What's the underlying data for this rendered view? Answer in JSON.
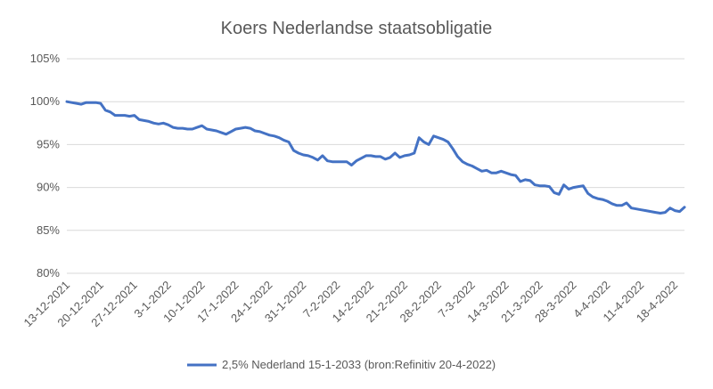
{
  "chart_data": {
    "type": "line",
    "title": "Koers Nederlandse staatsobligatie",
    "xlabel": "",
    "ylabel": "",
    "ylim": [
      80,
      105
    ],
    "y_ticks": [
      "80%",
      "85%",
      "90%",
      "95%",
      "100%",
      "105%"
    ],
    "y_tick_values": [
      80,
      85,
      90,
      95,
      100,
      105
    ],
    "x_tick_labels": [
      "13-12-2021",
      "20-12-2021",
      "27-12-2021",
      "3-1-2022",
      "10-1-2022",
      "17-1-2022",
      "24-1-2022",
      "31-1-2022",
      "7-2-2022",
      "14-2-2022",
      "21-2-2022",
      "28-2-2022",
      "7-3-2022",
      "14-3-2022",
      "21-3-2022",
      "28-3-2022",
      "4-4-2022",
      "11-4-2022",
      "18-4-2022"
    ],
    "xlim": [
      0,
      128
    ],
    "grid": true,
    "legend_position": "bottom",
    "color": "#4472c4",
    "series": [
      {
        "name": "2,5% Nederland 15-1-2033 (bron:Refinitiv 20-4-2022)",
        "x": [
          0,
          1,
          2,
          3,
          4,
          5,
          6,
          7,
          8,
          9,
          10,
          11,
          12,
          13,
          14,
          15,
          16,
          17,
          18,
          19,
          20,
          21,
          22,
          23,
          24,
          25,
          26,
          27,
          28,
          29,
          30,
          31,
          32,
          33,
          34,
          35,
          36,
          37,
          38,
          39,
          40,
          41,
          42,
          43,
          44,
          45,
          46,
          47,
          48,
          49,
          50,
          51,
          52,
          53,
          54,
          55,
          56,
          57,
          58,
          59,
          60,
          61,
          62,
          63,
          64,
          65,
          66,
          67,
          68,
          69,
          70,
          71,
          72,
          73,
          74,
          75,
          76,
          77,
          78,
          79,
          80,
          81,
          82,
          83,
          84,
          85,
          86,
          87,
          88,
          89,
          90,
          91,
          92,
          93,
          94,
          95,
          96,
          97,
          98,
          99,
          100,
          101,
          102,
          103,
          104,
          105,
          106,
          107,
          108,
          109,
          110,
          111,
          112,
          113,
          114,
          115,
          116,
          117,
          118,
          119,
          120,
          121,
          122,
          123,
          124,
          125,
          126,
          127,
          128
        ],
        "values": [
          100.0,
          99.9,
          99.8,
          99.7,
          99.9,
          99.9,
          99.9,
          99.8,
          99.0,
          98.8,
          98.4,
          98.4,
          98.4,
          98.3,
          98.4,
          97.9,
          97.8,
          97.7,
          97.5,
          97.4,
          97.5,
          97.3,
          97.0,
          96.9,
          96.9,
          96.8,
          96.8,
          97.0,
          97.2,
          96.8,
          96.7,
          96.6,
          96.4,
          96.2,
          96.5,
          96.8,
          96.9,
          97.0,
          96.9,
          96.6,
          96.5,
          96.3,
          96.1,
          96.0,
          95.8,
          95.5,
          95.3,
          94.3,
          94.0,
          93.8,
          93.7,
          93.5,
          93.2,
          93.7,
          93.1,
          93.0,
          93.0,
          93.0,
          93.0,
          92.6,
          93.1,
          93.4,
          93.7,
          93.7,
          93.6,
          93.6,
          93.3,
          93.5,
          94.0,
          93.5,
          93.7,
          93.8,
          94.0,
          95.8,
          95.3,
          95.0,
          96.0,
          95.8,
          95.6,
          95.3,
          94.5,
          93.6,
          93.0,
          92.7,
          92.5,
          92.2,
          91.9,
          92.0,
          91.7,
          91.7,
          91.9,
          91.7,
          91.5,
          91.4,
          90.7,
          90.9,
          90.8,
          90.3,
          90.2,
          90.2,
          90.1,
          89.4,
          89.2,
          90.3,
          89.8,
          90.0,
          90.1,
          90.2,
          89.3,
          88.9,
          88.7,
          88.6,
          88.4,
          88.1,
          87.9,
          87.9,
          88.2,
          87.6,
          87.5,
          87.4,
          87.3,
          87.2,
          87.1,
          87.0,
          87.1,
          87.6,
          87.3,
          87.2,
          87.7
        ]
      }
    ]
  }
}
